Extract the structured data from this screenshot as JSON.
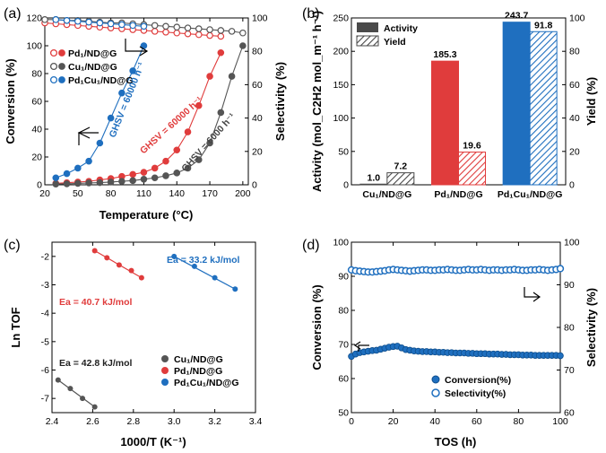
{
  "colors": {
    "red": "#e03c3c",
    "black": "#555555",
    "blue": "#1f6fbf",
    "grey": "#4a4a4a"
  },
  "chart_data": [
    {
      "panel": "(a)",
      "type": "scatter",
      "xlabel": "Temperature (°C)",
      "ylabel": "Conversion (%)",
      "y2label": "Selectivity (%)",
      "xlim": [
        20,
        205
      ],
      "ylim": [
        0,
        120
      ],
      "y2lim": [
        0,
        100
      ],
      "xticks": [
        20,
        50,
        80,
        110,
        140,
        170,
        200
      ],
      "yticks": [
        0,
        20,
        40,
        60,
        80,
        100,
        120
      ],
      "y2ticks": [
        0,
        20,
        40,
        60,
        80,
        100
      ],
      "legend": [
        "Pd₁/ND@G",
        "Cu₁/ND@G",
        "Pd₁Cu₁/ND@G"
      ],
      "annotations": [
        "GHSV = 60000 h⁻¹",
        "GHSV = 60000 h⁻¹",
        "GHSV = 6000 h⁻¹"
      ],
      "series": [
        {
          "name": "Pd1 conversion",
          "color": "red",
          "axis": "left",
          "filled": true,
          "x": [
            30,
            40,
            50,
            60,
            70,
            80,
            90,
            100,
            110,
            120,
            130,
            140,
            150,
            160,
            170,
            180
          ],
          "y": [
            1,
            1.5,
            2,
            2.5,
            3.5,
            4.5,
            6,
            7.5,
            9,
            12,
            17,
            25,
            38,
            57,
            78,
            95
          ]
        },
        {
          "name": "Cu1 conversion",
          "color": "black",
          "axis": "left",
          "filled": true,
          "x": [
            30,
            40,
            50,
            60,
            70,
            80,
            90,
            100,
            110,
            120,
            130,
            140,
            150,
            160,
            170,
            180,
            190,
            200
          ],
          "y": [
            0.5,
            0.7,
            1,
            1.3,
            1.6,
            2,
            2.5,
            3,
            4,
            5,
            6.5,
            8.5,
            12,
            18,
            30,
            52,
            78,
            100
          ]
        },
        {
          "name": "Pd1Cu1 conversion",
          "color": "blue",
          "axis": "left",
          "filled": true,
          "x": [
            30,
            40,
            50,
            60,
            70,
            80,
            90,
            100,
            110
          ],
          "y": [
            5,
            8,
            12,
            17,
            30,
            48,
            66,
            82,
            100
          ]
        },
        {
          "name": "Pd1 selectivity",
          "color": "red",
          "axis": "right",
          "filled": false,
          "x": [
            20,
            30,
            40,
            50,
            60,
            70,
            80,
            90,
            100,
            110,
            120,
            130,
            140,
            150,
            160,
            170,
            180
          ],
          "y": [
            97,
            96.5,
            96,
            95.5,
            95,
            94.5,
            94,
            93.5,
            93,
            92.5,
            92,
            91.5,
            91,
            90.5,
            90,
            89.5,
            89
          ]
        },
        {
          "name": "Cu1 selectivity",
          "color": "black",
          "axis": "right",
          "filled": false,
          "x": [
            20,
            30,
            40,
            50,
            60,
            70,
            80,
            90,
            100,
            110,
            120,
            130,
            140,
            150,
            160,
            170,
            180,
            190,
            200
          ],
          "y": [
            99,
            99,
            98.5,
            98.5,
            98,
            97.5,
            97,
            97,
            96.5,
            96,
            95.5,
            95,
            94.5,
            94,
            93.5,
            93,
            92.5,
            92,
            91
          ]
        },
        {
          "name": "Pd1Cu1 selectivity",
          "color": "blue",
          "axis": "right",
          "filled": false,
          "x": [
            30,
            40,
            50,
            60,
            70,
            80,
            90,
            100,
            110
          ],
          "y": [
            99,
            98.5,
            98,
            97.5,
            97,
            96.5,
            96,
            95.5,
            95
          ]
        }
      ]
    },
    {
      "panel": "(b)",
      "type": "bar",
      "ylabel": "Activity (mol_C2H2 mol_m⁻¹ h⁻¹)",
      "y2label": "Yield (%)",
      "ylim": [
        0,
        250
      ],
      "y2lim": [
        0,
        100
      ],
      "yticks": [
        0,
        50,
        100,
        150,
        200,
        250
      ],
      "y2ticks": [
        0,
        20,
        40,
        60,
        80,
        100
      ],
      "categories": [
        "Cu₁/ND@G",
        "Pd₁/ND@G",
        "Pd₁Cu₁/ND@G"
      ],
      "legend": [
        "Activity",
        "Yield"
      ],
      "activity": [
        1.0,
        185.3,
        243.7
      ],
      "activity_labels": [
        "1.0",
        "185.3",
        "243.7"
      ],
      "yield": [
        7.2,
        19.6,
        91.8
      ],
      "yield_labels": [
        "7.2",
        "19.6",
        "91.8"
      ],
      "bar_colors": [
        "grey",
        "red",
        "blue"
      ]
    },
    {
      "panel": "(c)",
      "type": "scatter",
      "xlabel": "1000/T (K⁻¹)",
      "ylabel": "Ln TOF",
      "xlim": [
        2.4,
        3.4
      ],
      "ylim": [
        -7.5,
        -1.5
      ],
      "xticks": [
        2.4,
        2.6,
        2.8,
        3.0,
        3.2,
        3.4
      ],
      "xtick_labels": [
        "2.4",
        "2.6",
        "2.8",
        "3.0",
        "3.2",
        "3.4"
      ],
      "yticks": [
        -7,
        -6,
        -5,
        -4,
        -3,
        -2
      ],
      "legend": [
        "Cu₁/ND@G",
        "Pd₁/ND@G",
        "Pd₁Cu₁/ND@G"
      ],
      "series": [
        {
          "name": "Cu1",
          "color": "black",
          "x": [
            2.43,
            2.49,
            2.55,
            2.61
          ],
          "y": [
            -6.35,
            -6.65,
            -7.0,
            -7.3
          ],
          "ea": "Ea = 42.8 kJ/mol"
        },
        {
          "name": "Pd1",
          "color": "red",
          "x": [
            2.61,
            2.67,
            2.73,
            2.79,
            2.84
          ],
          "y": [
            -1.8,
            -2.05,
            -2.3,
            -2.5,
            -2.75
          ],
          "ea": "Ea = 40.7 kJ/mol"
        },
        {
          "name": "Pd1Cu1",
          "color": "blue",
          "x": [
            3.0,
            3.1,
            3.2,
            3.3
          ],
          "y": [
            -2.0,
            -2.35,
            -2.75,
            -3.15
          ],
          "ea": "Ea = 33.2 kJ/mol"
        }
      ]
    },
    {
      "panel": "(d)",
      "type": "scatter",
      "xlabel": "TOS (h)",
      "ylabel": "Conversion (%)",
      "y2label": "Selectivity (%)",
      "xlim": [
        0,
        100
      ],
      "ylim": [
        50,
        100
      ],
      "y2lim": [
        60,
        100
      ],
      "xticks": [
        0,
        20,
        40,
        60,
        80,
        100
      ],
      "yticks": [
        50,
        60,
        70,
        80,
        90,
        100
      ],
      "y2ticks": [
        60,
        70,
        80,
        90,
        100
      ],
      "legend": [
        "Conversion(%)",
        "Selectivity(%)"
      ],
      "conversion": {
        "x_start": 0,
        "x_step": 2,
        "y": [
          66.5,
          67.2,
          67.6,
          67.8,
          68.0,
          68.2,
          68.3,
          68.6,
          68.9,
          69.2,
          69.4,
          69.5,
          69.0,
          68.5,
          68.3,
          68.1,
          68.0,
          67.9,
          67.9,
          67.8,
          67.8,
          67.7,
          67.7,
          67.6,
          67.6,
          67.5,
          67.5,
          67.5,
          67.4,
          67.4,
          67.3,
          67.3,
          67.3,
          67.2,
          67.2,
          67.2,
          67.1,
          67.1,
          67.0,
          67.0,
          67.0,
          66.9,
          66.9,
          66.9,
          66.8,
          66.8,
          66.8,
          66.8,
          66.8,
          66.8,
          66.7
        ]
      },
      "selectivity": {
        "x_start": 0,
        "x_step": 2,
        "y": [
          93.5,
          93.3,
          93.2,
          93.1,
          93.0,
          93.0,
          93.1,
          93.2,
          93.3,
          93.5,
          93.6,
          93.5,
          93.4,
          93.3,
          93.2,
          93.3,
          93.4,
          93.5,
          93.5,
          93.4,
          93.4,
          93.5,
          93.5,
          93.6,
          93.5,
          93.4,
          93.4,
          93.5,
          93.6,
          93.5,
          93.5,
          93.6,
          93.5,
          93.4,
          93.5,
          93.5,
          93.4,
          93.5,
          93.5,
          93.6,
          93.5,
          93.4,
          93.4,
          93.5,
          93.5,
          93.6,
          93.5,
          93.4,
          93.5,
          93.6,
          93.8
        ]
      }
    }
  ]
}
